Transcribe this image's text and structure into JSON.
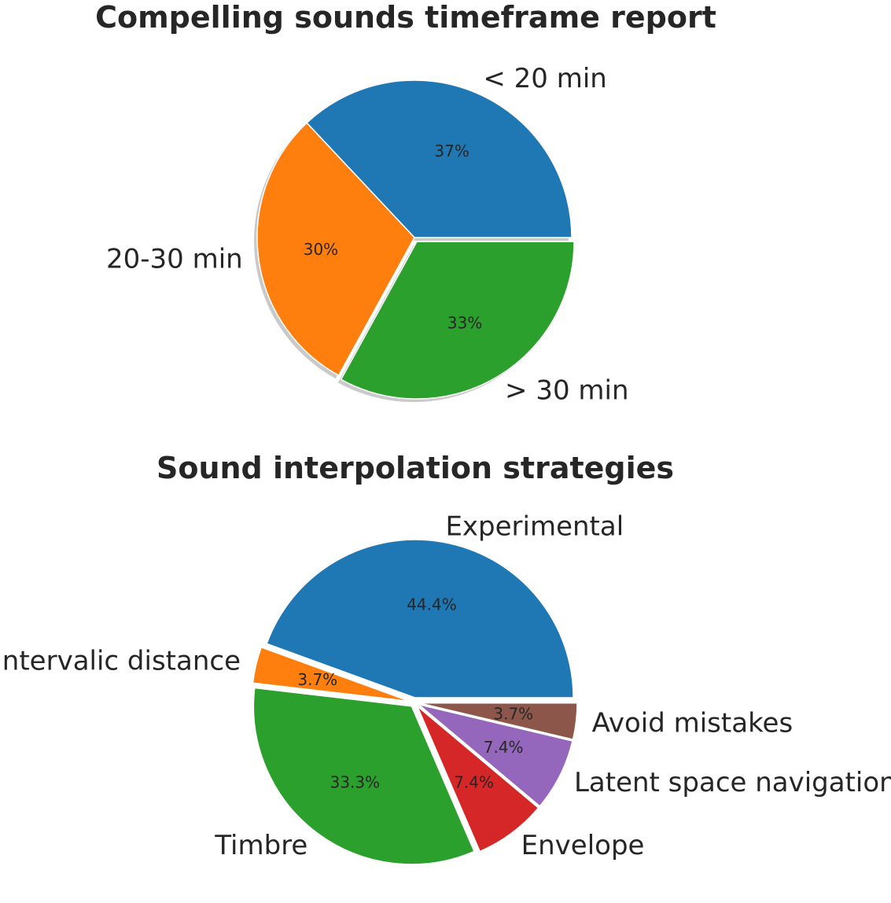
{
  "chart_data": [
    {
      "type": "pie",
      "title": "Compelling sounds timeframe report",
      "labels": [
        "< 20 min",
        "20-30 min",
        "> 30 min"
      ],
      "values": [
        37,
        30,
        33
      ],
      "percent_labels": [
        "37%",
        "30%",
        "33%"
      ],
      "colors": [
        "#1f77b4",
        "#ff7f0e",
        "#2ca02c"
      ],
      "explode": [
        0,
        0,
        0.03
      ],
      "shadow": true,
      "start_angle_deg": 0
    },
    {
      "type": "pie",
      "title": "Sound interpolation strategies",
      "labels": [
        "Experimental",
        "Intervalic distance",
        "Timbre",
        "Envelope",
        "Latent space navigation",
        "Avoid mistakes"
      ],
      "values": [
        44.4,
        3.7,
        33.3,
        7.4,
        7.4,
        3.7
      ],
      "percent_labels": [
        "44.4%",
        "3.7%",
        "33.3%",
        "7.4%",
        "7.4%",
        "3.7%"
      ],
      "colors": [
        "#1f77b4",
        "#ff7f0e",
        "#2ca02c",
        "#d62728",
        "#9467bd",
        "#8c564b"
      ],
      "explode": [
        0.03,
        0.03,
        0.03,
        0.03,
        0.03,
        0.03
      ],
      "shadow": false,
      "start_angle_deg": 0
    }
  ]
}
